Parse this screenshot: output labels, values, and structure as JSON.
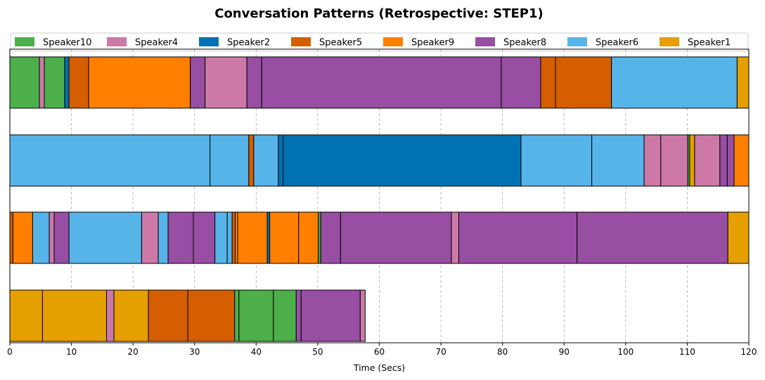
{
  "chart_data": {
    "type": "bar",
    "orientation": "horizontal-timeline",
    "title": "Conversation Patterns (Retrospective: STEP1)",
    "xlabel": "Time (Secs)",
    "ylabel": "",
    "xlim": [
      0,
      120
    ],
    "xticks": [
      "0",
      "10",
      "20",
      "30",
      "40",
      "50",
      "60",
      "70",
      "80",
      "90",
      "100",
      "110",
      "120"
    ],
    "grid": "vertical dashed",
    "legend_position": "top",
    "speakers": [
      {
        "name": "Speaker10",
        "color": "#4daf4a"
      },
      {
        "name": "Speaker4",
        "color": "#cc79a7"
      },
      {
        "name": "Speaker2",
        "color": "#0072b2"
      },
      {
        "name": "Speaker5",
        "color": "#d55e00"
      },
      {
        "name": "Speaker9",
        "color": "#ff7f00"
      },
      {
        "name": "Speaker8",
        "color": "#984ea3"
      },
      {
        "name": "Speaker6",
        "color": "#56b4e9"
      },
      {
        "name": "Speaker1",
        "color": "#e69f00"
      }
    ],
    "rows": [
      [
        {
          "speaker": "Speaker10",
          "start": 0,
          "end": 4.8
        },
        {
          "speaker": "Speaker4",
          "start": 4.8,
          "end": 5.6
        },
        {
          "speaker": "Speaker10",
          "start": 5.6,
          "end": 8.9
        },
        {
          "speaker": "Speaker2",
          "start": 8.9,
          "end": 9.6
        },
        {
          "speaker": "Speaker5",
          "start": 9.6,
          "end": 12.8
        },
        {
          "speaker": "Speaker9",
          "start": 12.8,
          "end": 29.3
        },
        {
          "speaker": "Speaker8",
          "start": 29.3,
          "end": 31.7
        },
        {
          "speaker": "Speaker4",
          "start": 31.7,
          "end": 38.5
        },
        {
          "speaker": "Speaker8",
          "start": 38.5,
          "end": 40.9
        },
        {
          "speaker": "Speaker8",
          "start": 40.9,
          "end": 79.8
        },
        {
          "speaker": "Speaker8",
          "start": 79.8,
          "end": 86.2
        },
        {
          "speaker": "Speaker5",
          "start": 86.2,
          "end": 88.6
        },
        {
          "speaker": "Speaker5",
          "start": 88.6,
          "end": 97.7
        },
        {
          "speaker": "Speaker6",
          "start": 97.7,
          "end": 118.1
        },
        {
          "speaker": "Speaker1",
          "start": 118.1,
          "end": 120
        }
      ],
      [
        {
          "speaker": "Speaker6",
          "start": 0,
          "end": 32.5
        },
        {
          "speaker": "Speaker6",
          "start": 32.5,
          "end": 38.8
        },
        {
          "speaker": "Speaker5",
          "start": 38.8,
          "end": 39.6
        },
        {
          "speaker": "Speaker6",
          "start": 39.6,
          "end": 43.6
        },
        {
          "speaker": "Speaker2",
          "start": 43.6,
          "end": 44.4
        },
        {
          "speaker": "Speaker2",
          "start": 44.4,
          "end": 83.0
        },
        {
          "speaker": "Speaker6",
          "start": 83.0,
          "end": 94.5
        },
        {
          "speaker": "Speaker6",
          "start": 94.5,
          "end": 103.0
        },
        {
          "speaker": "Speaker4",
          "start": 103.0,
          "end": 105.7
        },
        {
          "speaker": "Speaker4",
          "start": 105.7,
          "end": 110.1
        },
        {
          "speaker": "Speaker10",
          "start": 110.1,
          "end": 110.4
        },
        {
          "speaker": "Speaker1",
          "start": 110.4,
          "end": 111.2
        },
        {
          "speaker": "Speaker4",
          "start": 111.2,
          "end": 115.3
        },
        {
          "speaker": "Speaker8",
          "start": 115.3,
          "end": 116.5
        },
        {
          "speaker": "Speaker8",
          "start": 116.5,
          "end": 117.6
        },
        {
          "speaker": "Speaker9",
          "start": 117.6,
          "end": 120
        }
      ],
      [
        {
          "speaker": "Speaker5",
          "start": 0,
          "end": 0.5
        },
        {
          "speaker": "Speaker9",
          "start": 0.5,
          "end": 3.7
        },
        {
          "speaker": "Speaker6",
          "start": 3.7,
          "end": 6.4
        },
        {
          "speaker": "Speaker4",
          "start": 6.4,
          "end": 7.2
        },
        {
          "speaker": "Speaker8",
          "start": 7.2,
          "end": 9.6
        },
        {
          "speaker": "Speaker6",
          "start": 9.6,
          "end": 21.4
        },
        {
          "speaker": "Speaker4",
          "start": 21.4,
          "end": 24.1
        },
        {
          "speaker": "Speaker6",
          "start": 24.1,
          "end": 25.7
        },
        {
          "speaker": "Speaker8",
          "start": 25.7,
          "end": 29.8
        },
        {
          "speaker": "Speaker8",
          "start": 29.8,
          "end": 33.3
        },
        {
          "speaker": "Speaker6",
          "start": 33.3,
          "end": 35.3
        },
        {
          "speaker": "Speaker6",
          "start": 35.3,
          "end": 36.1
        },
        {
          "speaker": "Speaker5",
          "start": 36.1,
          "end": 36.6
        },
        {
          "speaker": "Speaker9",
          "start": 36.6,
          "end": 37.0
        },
        {
          "speaker": "Speaker9",
          "start": 37.0,
          "end": 41.8
        },
        {
          "speaker": "Speaker2",
          "start": 41.8,
          "end": 42.2
        },
        {
          "speaker": "Speaker9",
          "start": 42.2,
          "end": 46.9
        },
        {
          "speaker": "Speaker9",
          "start": 46.9,
          "end": 50.1
        },
        {
          "speaker": "Speaker10",
          "start": 50.1,
          "end": 50.5
        },
        {
          "speaker": "Speaker8",
          "start": 50.5,
          "end": 53.7
        },
        {
          "speaker": "Speaker8",
          "start": 53.7,
          "end": 71.7
        },
        {
          "speaker": "Speaker4",
          "start": 71.7,
          "end": 72.9
        },
        {
          "speaker": "Speaker8",
          "start": 72.9,
          "end": 92.1
        },
        {
          "speaker": "Speaker8",
          "start": 92.1,
          "end": 116.6
        },
        {
          "speaker": "Speaker1",
          "start": 116.6,
          "end": 120
        }
      ],
      [
        {
          "speaker": "Speaker1",
          "start": 0,
          "end": 5.3
        },
        {
          "speaker": "Speaker1",
          "start": 5.3,
          "end": 15.7
        },
        {
          "speaker": "Speaker4",
          "start": 15.7,
          "end": 16.9
        },
        {
          "speaker": "Speaker1",
          "start": 16.9,
          "end": 22.5
        },
        {
          "speaker": "Speaker5",
          "start": 22.5,
          "end": 28.9
        },
        {
          "speaker": "Speaker5",
          "start": 28.9,
          "end": 36.5
        },
        {
          "speaker": "Speaker10",
          "start": 36.5,
          "end": 37.2
        },
        {
          "speaker": "Speaker10",
          "start": 37.2,
          "end": 42.8
        },
        {
          "speaker": "Speaker10",
          "start": 42.8,
          "end": 46.5
        },
        {
          "speaker": "Speaker8",
          "start": 46.5,
          "end": 47.3
        },
        {
          "speaker": "Speaker8",
          "start": 47.3,
          "end": 56.9
        },
        {
          "speaker": "Speaker4",
          "start": 56.9,
          "end": 57.7
        }
      ]
    ]
  }
}
